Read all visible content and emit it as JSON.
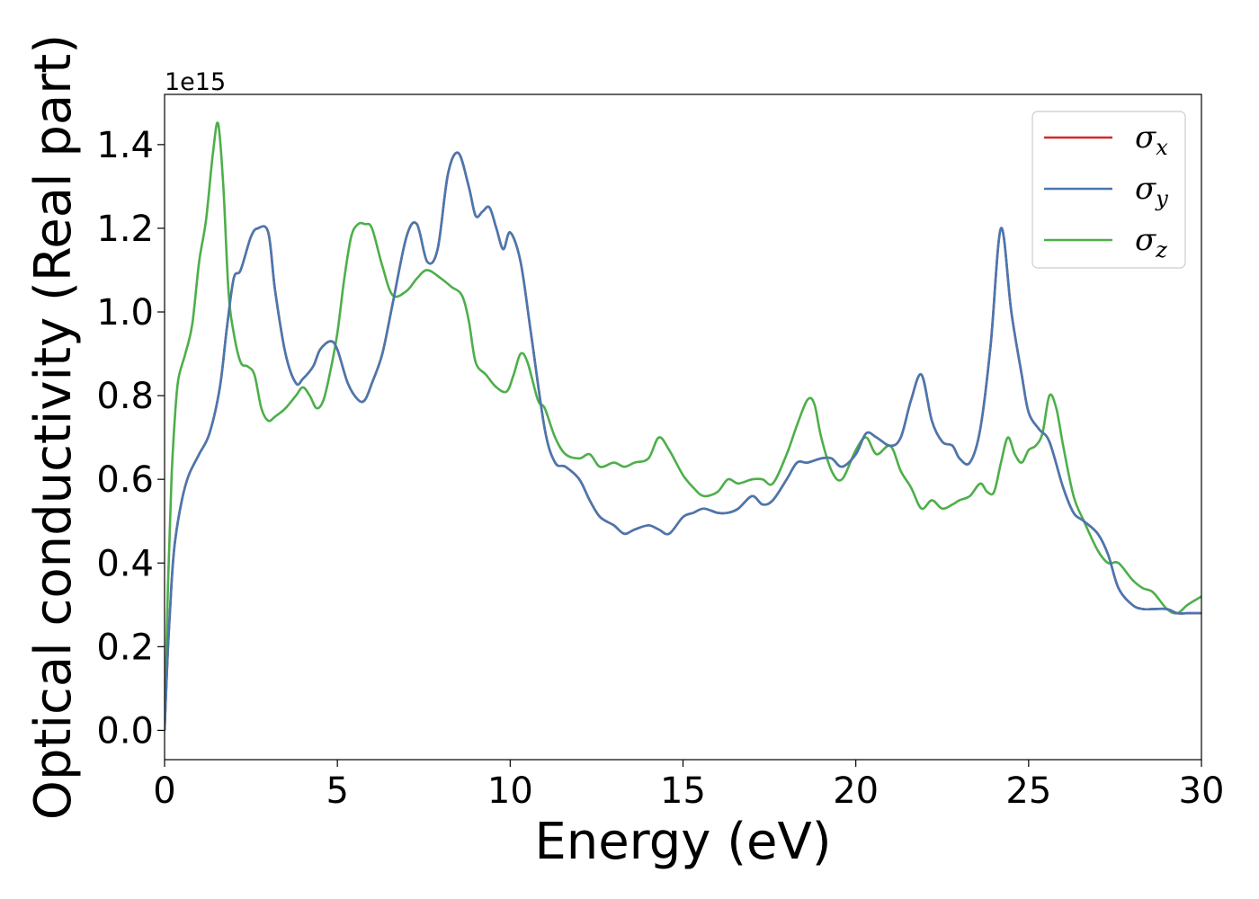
{
  "chart_data": {
    "type": "line",
    "title": "",
    "xlabel": "Energy (eV)",
    "ylabel": "Optical conductivity (Real part)",
    "y_offset_label": "1e15",
    "y_multiplier": 1000000000000000.0,
    "xlim": [
      0,
      30
    ],
    "ylim": [
      -0.07,
      1.52
    ],
    "xticks": [
      0,
      5,
      10,
      15,
      20,
      25,
      30
    ],
    "xtick_labels": [
      "0",
      "5",
      "10",
      "15",
      "20",
      "25",
      "30"
    ],
    "yticks": [
      0.0,
      0.2,
      0.4,
      0.6,
      0.8,
      1.0,
      1.2,
      1.4
    ],
    "ytick_labels": [
      "0.0",
      "0.2",
      "0.4",
      "0.6",
      "0.8",
      "1.0",
      "1.2",
      "1.4"
    ],
    "grid": false,
    "legend_position": "top-right",
    "series": [
      {
        "name": "σ_x",
        "symbol": "σ",
        "subscript": "x",
        "color": "#d62728",
        "x": [
          0,
          0.1,
          0.2,
          0.3,
          0.5,
          0.7,
          1.0,
          1.3,
          1.6,
          1.8,
          2.0,
          2.2,
          2.5,
          2.7,
          3.0,
          3.2,
          3.5,
          3.8,
          4.0,
          4.3,
          4.5,
          4.8,
          5.0,
          5.3,
          5.6,
          5.8,
          6.0,
          6.3,
          6.6,
          7.0,
          7.3,
          7.6,
          7.9,
          8.2,
          8.5,
          8.8,
          9.0,
          9.2,
          9.4,
          9.6,
          9.8,
          10.0,
          10.3,
          10.6,
          11.0,
          11.3,
          11.6,
          12.0,
          12.3,
          12.6,
          13.0,
          13.3,
          13.6,
          14.0,
          14.3,
          14.6,
          15.0,
          15.3,
          15.6,
          16.0,
          16.3,
          16.6,
          17.0,
          17.3,
          17.6,
          18.0,
          18.3,
          18.6,
          19.0,
          19.3,
          19.6,
          20.0,
          20.3,
          20.6,
          21.0,
          21.3,
          21.6,
          21.9,
          22.2,
          22.5,
          22.8,
          23.0,
          23.3,
          23.6,
          23.9,
          24.2,
          24.5,
          24.8,
          25.0,
          25.3,
          25.6,
          26.0,
          26.3,
          26.6,
          27.0,
          27.3,
          27.6,
          28.0,
          28.3,
          28.6,
          29.0,
          29.3,
          29.6,
          30.0
        ],
        "y": [
          0.0,
          0.2,
          0.35,
          0.45,
          0.55,
          0.61,
          0.66,
          0.71,
          0.82,
          0.96,
          1.08,
          1.1,
          1.18,
          1.2,
          1.19,
          1.05,
          0.9,
          0.83,
          0.84,
          0.87,
          0.91,
          0.93,
          0.91,
          0.83,
          0.79,
          0.79,
          0.83,
          0.9,
          1.02,
          1.18,
          1.21,
          1.12,
          1.15,
          1.33,
          1.38,
          1.3,
          1.23,
          1.24,
          1.25,
          1.2,
          1.15,
          1.19,
          1.12,
          0.95,
          0.72,
          0.64,
          0.63,
          0.6,
          0.55,
          0.51,
          0.49,
          0.47,
          0.48,
          0.49,
          0.48,
          0.47,
          0.51,
          0.52,
          0.53,
          0.52,
          0.52,
          0.53,
          0.56,
          0.54,
          0.55,
          0.6,
          0.64,
          0.64,
          0.65,
          0.65,
          0.63,
          0.66,
          0.71,
          0.7,
          0.68,
          0.7,
          0.79,
          0.85,
          0.74,
          0.69,
          0.68,
          0.65,
          0.64,
          0.72,
          0.92,
          1.2,
          1.0,
          0.85,
          0.76,
          0.72,
          0.69,
          0.58,
          0.52,
          0.5,
          0.47,
          0.42,
          0.34,
          0.3,
          0.29,
          0.29,
          0.29,
          0.28,
          0.28,
          0.28
        ]
      },
      {
        "name": "σ_y",
        "symbol": "σ",
        "subscript": "y",
        "color": "#4878b0",
        "x": [
          0,
          0.1,
          0.2,
          0.3,
          0.5,
          0.7,
          1.0,
          1.3,
          1.6,
          1.8,
          2.0,
          2.2,
          2.5,
          2.7,
          3.0,
          3.2,
          3.5,
          3.8,
          4.0,
          4.3,
          4.5,
          4.8,
          5.0,
          5.3,
          5.6,
          5.8,
          6.0,
          6.3,
          6.6,
          7.0,
          7.3,
          7.6,
          7.9,
          8.2,
          8.5,
          8.8,
          9.0,
          9.2,
          9.4,
          9.6,
          9.8,
          10.0,
          10.3,
          10.6,
          11.0,
          11.3,
          11.6,
          12.0,
          12.3,
          12.6,
          13.0,
          13.3,
          13.6,
          14.0,
          14.3,
          14.6,
          15.0,
          15.3,
          15.6,
          16.0,
          16.3,
          16.6,
          17.0,
          17.3,
          17.6,
          18.0,
          18.3,
          18.6,
          19.0,
          19.3,
          19.6,
          20.0,
          20.3,
          20.6,
          21.0,
          21.3,
          21.6,
          21.9,
          22.2,
          22.5,
          22.8,
          23.0,
          23.3,
          23.6,
          23.9,
          24.2,
          24.5,
          24.8,
          25.0,
          25.3,
          25.6,
          26.0,
          26.3,
          26.6,
          27.0,
          27.3,
          27.6,
          28.0,
          28.3,
          28.6,
          29.0,
          29.3,
          29.6,
          30.0
        ],
        "y": [
          0.0,
          0.2,
          0.35,
          0.45,
          0.55,
          0.61,
          0.66,
          0.71,
          0.82,
          0.96,
          1.08,
          1.1,
          1.18,
          1.2,
          1.19,
          1.05,
          0.9,
          0.83,
          0.84,
          0.87,
          0.91,
          0.93,
          0.91,
          0.83,
          0.79,
          0.79,
          0.83,
          0.9,
          1.02,
          1.18,
          1.21,
          1.12,
          1.15,
          1.33,
          1.38,
          1.3,
          1.23,
          1.24,
          1.25,
          1.2,
          1.15,
          1.19,
          1.12,
          0.95,
          0.72,
          0.64,
          0.63,
          0.6,
          0.55,
          0.51,
          0.49,
          0.47,
          0.48,
          0.49,
          0.48,
          0.47,
          0.51,
          0.52,
          0.53,
          0.52,
          0.52,
          0.53,
          0.56,
          0.54,
          0.55,
          0.6,
          0.64,
          0.64,
          0.65,
          0.65,
          0.63,
          0.66,
          0.71,
          0.7,
          0.68,
          0.7,
          0.79,
          0.85,
          0.74,
          0.69,
          0.68,
          0.65,
          0.64,
          0.72,
          0.92,
          1.2,
          1.0,
          0.85,
          0.76,
          0.72,
          0.69,
          0.58,
          0.52,
          0.5,
          0.47,
          0.42,
          0.34,
          0.3,
          0.29,
          0.29,
          0.29,
          0.28,
          0.28,
          0.28
        ]
      },
      {
        "name": "σ_z",
        "symbol": "σ",
        "subscript": "z",
        "color": "#4daf4a",
        "x": [
          0,
          0.1,
          0.2,
          0.3,
          0.4,
          0.6,
          0.8,
          1.0,
          1.2,
          1.4,
          1.55,
          1.7,
          1.85,
          2.0,
          2.2,
          2.4,
          2.6,
          2.8,
          3.0,
          3.2,
          3.5,
          3.8,
          4.0,
          4.2,
          4.4,
          4.6,
          4.8,
          5.0,
          5.2,
          5.4,
          5.6,
          5.8,
          6.0,
          6.3,
          6.6,
          7.0,
          7.3,
          7.6,
          8.0,
          8.3,
          8.6,
          8.8,
          9.0,
          9.3,
          9.6,
          9.9,
          10.1,
          10.3,
          10.5,
          10.8,
          11.0,
          11.3,
          11.6,
          12.0,
          12.3,
          12.6,
          13.0,
          13.3,
          13.6,
          14.0,
          14.3,
          14.6,
          15.0,
          15.3,
          15.6,
          16.0,
          16.3,
          16.6,
          17.0,
          17.3,
          17.6,
          18.0,
          18.3,
          18.6,
          18.8,
          19.0,
          19.3,
          19.6,
          20.0,
          20.3,
          20.6,
          21.0,
          21.3,
          21.6,
          21.9,
          22.2,
          22.5,
          22.8,
          23.0,
          23.3,
          23.6,
          23.8,
          24.0,
          24.2,
          24.4,
          24.6,
          24.8,
          25.0,
          25.2,
          25.4,
          25.6,
          25.8,
          26.0,
          26.3,
          26.6,
          27.0,
          27.3,
          27.6,
          28.0,
          28.3,
          28.6,
          29.0,
          29.3,
          29.6,
          30.0
        ],
        "y": [
          0.0,
          0.35,
          0.6,
          0.75,
          0.84,
          0.9,
          0.97,
          1.12,
          1.22,
          1.38,
          1.45,
          1.3,
          1.05,
          0.95,
          0.88,
          0.87,
          0.85,
          0.77,
          0.74,
          0.75,
          0.77,
          0.8,
          0.82,
          0.8,
          0.77,
          0.79,
          0.86,
          0.95,
          1.08,
          1.18,
          1.21,
          1.21,
          1.2,
          1.11,
          1.04,
          1.05,
          1.08,
          1.1,
          1.08,
          1.06,
          1.04,
          0.98,
          0.88,
          0.85,
          0.82,
          0.81,
          0.85,
          0.9,
          0.88,
          0.79,
          0.77,
          0.7,
          0.66,
          0.65,
          0.66,
          0.63,
          0.64,
          0.63,
          0.64,
          0.65,
          0.7,
          0.67,
          0.61,
          0.58,
          0.56,
          0.57,
          0.6,
          0.59,
          0.6,
          0.6,
          0.59,
          0.66,
          0.73,
          0.79,
          0.78,
          0.7,
          0.62,
          0.6,
          0.67,
          0.7,
          0.66,
          0.68,
          0.62,
          0.58,
          0.53,
          0.55,
          0.53,
          0.54,
          0.55,
          0.56,
          0.59,
          0.57,
          0.57,
          0.64,
          0.7,
          0.66,
          0.64,
          0.67,
          0.68,
          0.71,
          0.8,
          0.77,
          0.68,
          0.56,
          0.5,
          0.43,
          0.4,
          0.4,
          0.36,
          0.34,
          0.33,
          0.29,
          0.28,
          0.3,
          0.32
        ]
      }
    ]
  }
}
